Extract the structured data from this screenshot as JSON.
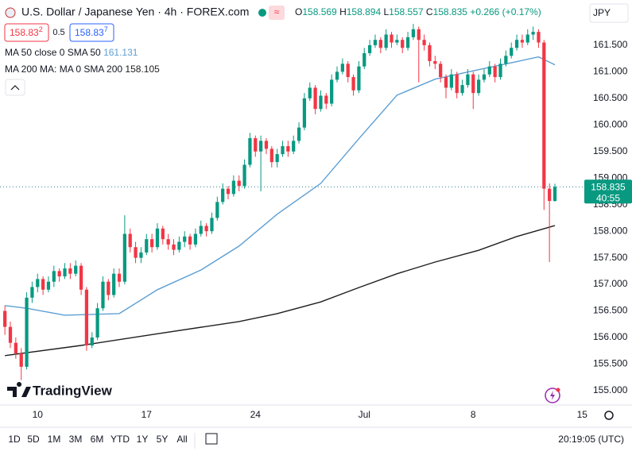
{
  "chart_data": {
    "type": "candlestick",
    "title": "U.S. Dollar / Japanese Yen · 4h · FOREX.com",
    "ohlc_labels": [
      "O",
      "H",
      "L",
      "C"
    ],
    "change": "+0.266 (+0.17%)",
    "bid": "158.83",
    "bid_pip": "2",
    "spread": "0.5",
    "ask": "158.83",
    "ask_pip": "7",
    "currency": "JPY",
    "countdown": "40:55",
    "brand": "TradingView",
    "ranges": [
      "1D",
      "5D",
      "1M",
      "3M",
      "6M",
      "YTD",
      "1Y",
      "5Y",
      "All"
    ],
    "clock": "20:19:05 (UTC)",
    "up_color": "#089981",
    "down_color": "#f23645",
    "xlim": [
      -0.9,
      106.4
    ],
    "xticks": [
      {
        "value": 6,
        "label": "10"
      },
      {
        "value": 26,
        "label": "17"
      },
      {
        "value": 46,
        "label": "24"
      },
      {
        "value": 66,
        "label": "Jul"
      },
      {
        "value": 86,
        "label": "8"
      },
      {
        "value": 106,
        "label": "15"
      }
    ],
    "ylim": [
      154.73,
      162.35
    ],
    "yticks": [
      {
        "value": 155,
        "label": "155.000"
      },
      {
        "value": 155.5,
        "label": "155.500"
      },
      {
        "value": 156,
        "label": "156.000"
      },
      {
        "value": 156.5,
        "label": "156.500"
      },
      {
        "value": 157,
        "label": "157.000"
      },
      {
        "value": 157.5,
        "label": "157.500"
      },
      {
        "value": 158,
        "label": "158.000"
      },
      {
        "value": 158.5,
        "label": "158.500"
      },
      {
        "value": 159,
        "label": "159.000"
      },
      {
        "value": 159.5,
        "label": "159.500"
      },
      {
        "value": 160,
        "label": "160.000"
      },
      {
        "value": 160.5,
        "label": "160.500"
      },
      {
        "value": 161,
        "label": "161.000"
      },
      {
        "value": 161.5,
        "label": "161.500"
      }
    ],
    "open": [
      156.5,
      156.2,
      155.9,
      155.7,
      155.45,
      156.75,
      156.95,
      157.1,
      156.9,
      157.05,
      157.25,
      157.15,
      157.3,
      157.2,
      157.35,
      156.9,
      155.85,
      156.0,
      156.55,
      157.05,
      156.8,
      157.2,
      157.05,
      157.95,
      157.7,
      157.5,
      157.6,
      157.85,
      157.7,
      158.05,
      157.85,
      157.75,
      157.65,
      157.8,
      157.9,
      157.75,
      157.95,
      158.1,
      158.0,
      158.25,
      158.55,
      158.8,
      158.7,
      158.95,
      158.85,
      159.25,
      159.75,
      159.5,
      159.7,
      159.55,
      159.3,
      159.45,
      159.6,
      159.5,
      159.7,
      159.95,
      160.5,
      160.7,
      160.3,
      160.55,
      160.4,
      160.85,
      161.0,
      161.15,
      160.9,
      160.65,
      161.1,
      161.35,
      161.5,
      161.6,
      161.45,
      161.7,
      161.55,
      161.6,
      161.45,
      161.65,
      161.8,
      161.6,
      161.5,
      161.2,
      161.15,
      160.9,
      160.7,
      160.95,
      160.6,
      160.75,
      160.95,
      160.6,
      160.85,
      160.95,
      161.1,
      160.9,
      161.15,
      161.3,
      161.45,
      161.6,
      161.55,
      161.7,
      161.75,
      161.55,
      158.8,
      158.569
    ],
    "high": [
      156.6,
      156.3,
      156.0,
      155.8,
      156.85,
      157.05,
      157.2,
      157.15,
      157.15,
      157.35,
      157.3,
      157.4,
      157.4,
      157.45,
      157.4,
      156.95,
      156.1,
      156.65,
      157.15,
      157.1,
      157.3,
      157.3,
      158.3,
      158.05,
      157.8,
      157.7,
      157.95,
      157.95,
      158.15,
      158.1,
      157.95,
      157.85,
      157.9,
      158.0,
      157.95,
      158.05,
      158.2,
      158.15,
      158.35,
      158.65,
      158.9,
      158.85,
      159.05,
      159.05,
      159.35,
      159.85,
      159.8,
      159.8,
      159.75,
      159.6,
      159.55,
      159.7,
      159.7,
      159.8,
      160.05,
      160.6,
      160.8,
      160.75,
      160.65,
      160.6,
      160.95,
      161.1,
      161.25,
      161.2,
      160.95,
      161.2,
      161.45,
      161.6,
      161.7,
      161.65,
      161.8,
      161.75,
      161.7,
      161.65,
      161.75,
      161.9,
      161.85,
      161.7,
      161.55,
      161.3,
      161.2,
      160.95,
      161.05,
      161.0,
      160.85,
      161.05,
      161.0,
      160.95,
      161.05,
      161.2,
      161.15,
      161.25,
      161.4,
      161.55,
      161.7,
      161.7,
      161.8,
      161.85,
      161.8,
      161.6,
      158.9,
      158.894
    ],
    "low": [
      156.05,
      155.8,
      155.6,
      155.2,
      155.4,
      156.65,
      156.85,
      156.8,
      156.85,
      156.95,
      157.05,
      157.1,
      157.1,
      157.15,
      156.8,
      155.75,
      155.8,
      155.95,
      156.5,
      156.7,
      156.75,
      156.95,
      157.0,
      157.6,
      157.4,
      157.4,
      157.55,
      157.6,
      157.65,
      157.75,
      157.65,
      157.55,
      157.6,
      157.7,
      157.65,
      157.7,
      157.9,
      157.9,
      157.95,
      158.2,
      158.5,
      158.6,
      158.65,
      158.75,
      158.8,
      159.2,
      159.4,
      158.75,
      159.45,
      159.2,
      159.2,
      159.4,
      159.4,
      159.45,
      159.65,
      159.9,
      160.45,
      160.2,
      160.25,
      160.3,
      160.35,
      160.8,
      160.95,
      160.8,
      160.55,
      160.6,
      161.05,
      161.3,
      161.45,
      161.35,
      161.4,
      161.45,
      161.5,
      161.35,
      161.4,
      161.6,
      160.8,
      161.4,
      161.1,
      161.05,
      160.8,
      160.5,
      160.65,
      160.5,
      160.55,
      160.7,
      160.3,
      160.55,
      160.8,
      160.9,
      160.8,
      160.85,
      161.1,
      161.25,
      161.4,
      161.45,
      161.5,
      161.6,
      161.45,
      158.4,
      157.42,
      158.557
    ],
    "close": [
      156.2,
      155.9,
      155.7,
      155.45,
      156.75,
      156.95,
      157.1,
      156.9,
      157.05,
      157.25,
      157.15,
      157.3,
      157.2,
      157.35,
      156.9,
      155.85,
      156.0,
      156.55,
      157.05,
      156.8,
      157.2,
      157.05,
      157.95,
      157.7,
      157.5,
      157.6,
      157.85,
      157.7,
      158.05,
      157.85,
      157.75,
      157.65,
      157.8,
      157.9,
      157.75,
      157.95,
      158.1,
      158.0,
      158.25,
      158.55,
      158.8,
      158.7,
      158.95,
      158.85,
      159.25,
      159.75,
      159.5,
      159.7,
      159.55,
      159.3,
      159.45,
      159.6,
      159.5,
      159.7,
      159.95,
      160.5,
      160.7,
      160.3,
      160.55,
      160.4,
      160.85,
      161.0,
      161.15,
      160.9,
      160.65,
      161.1,
      161.35,
      161.5,
      161.6,
      161.45,
      161.7,
      161.55,
      161.6,
      161.45,
      161.65,
      161.8,
      161.6,
      161.5,
      161.2,
      161.15,
      160.9,
      160.7,
      160.95,
      160.6,
      160.75,
      160.95,
      160.6,
      160.85,
      160.95,
      161.1,
      160.9,
      161.15,
      161.3,
      161.45,
      161.6,
      161.55,
      161.7,
      161.75,
      161.55,
      158.8,
      158.569,
      158.835
    ],
    "indicators": [
      {
        "name": "MA 50 close 0 SMA 50",
        "color": "#5d9fd3",
        "x": [
          0,
          4,
          11,
          21,
          28,
          36,
          43,
          50,
          58,
          65,
          72,
          79,
          87,
          94,
          98,
          101
        ],
        "values": [
          156.6,
          156.55,
          156.42,
          156.45,
          156.9,
          157.27,
          157.72,
          158.32,
          158.9,
          159.74,
          160.56,
          160.86,
          161.04,
          161.19,
          161.28,
          161.131
        ]
      },
      {
        "name": "MA 200 MA: MA 0 SMA 200",
        "color": "#1e1e1e",
        "x": [
          0,
          14,
          28,
          43,
          50,
          58,
          65,
          72,
          79,
          87,
          94,
          101
        ],
        "values": [
          155.66,
          155.85,
          156.07,
          156.3,
          156.45,
          156.67,
          156.94,
          157.2,
          157.42,
          157.64,
          157.9,
          158.105
        ]
      }
    ]
  }
}
